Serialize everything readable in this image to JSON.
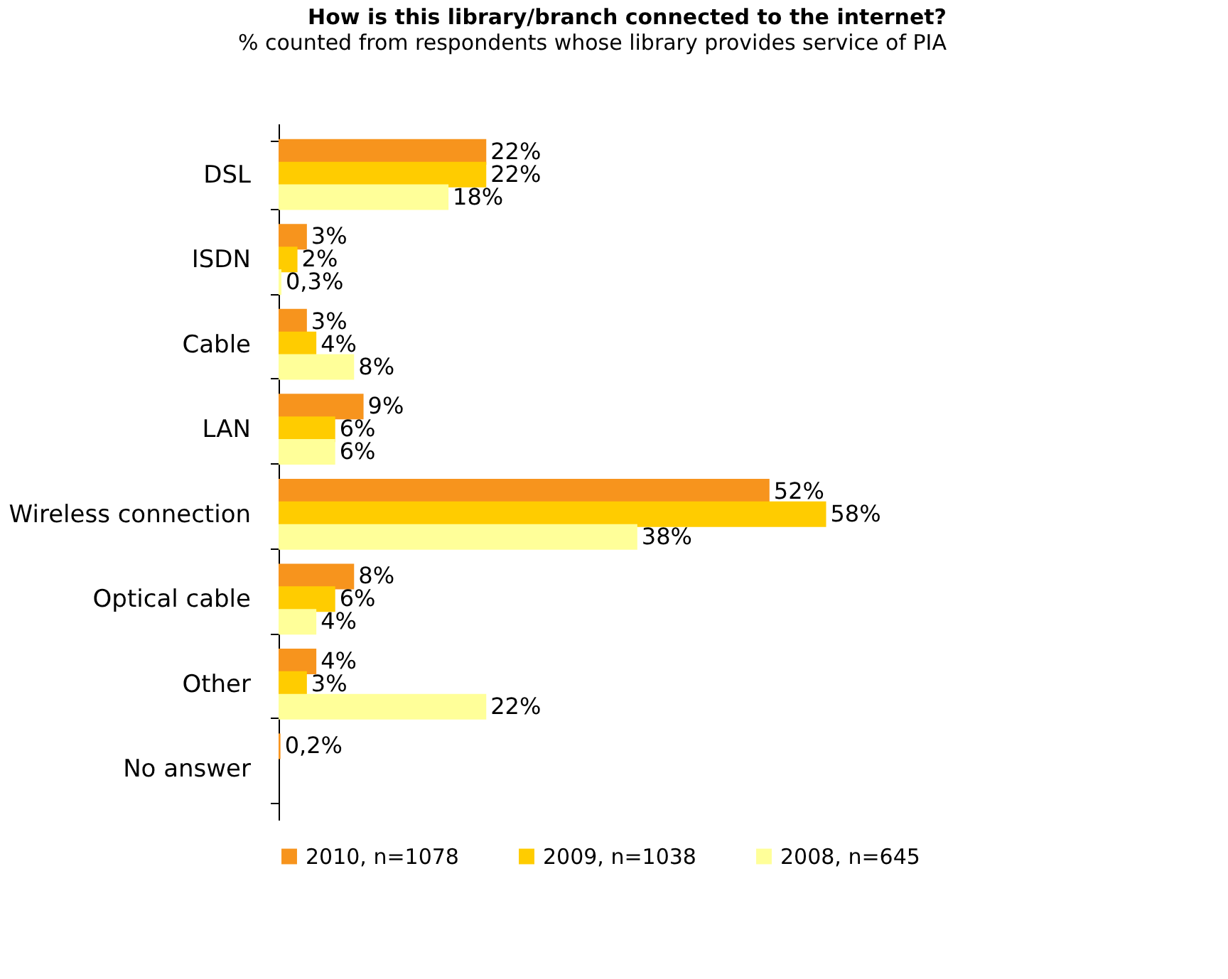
{
  "chart_data": {
    "type": "bar",
    "orientation": "horizontal",
    "title": "How is this library/branch connected to the internet?",
    "subtitle": "% counted from respondents whose library provides service of PIA",
    "categories": [
      "DSL",
      "ISDN",
      "Cable",
      "LAN",
      "Wireless connection",
      "Optical cable",
      "Other",
      "No answer"
    ],
    "series": [
      {
        "name": "2010, n=1078",
        "color": "#f7941d",
        "values": [
          22,
          3,
          3,
          9,
          52,
          8,
          4,
          0.2
        ],
        "value_labels": [
          "22%",
          "3%",
          "3%",
          "9%",
          "52%",
          "8%",
          "4%",
          "0,2%"
        ]
      },
      {
        "name": "2009, n=1038",
        "color": "#ffcc00",
        "values": [
          22,
          2,
          4,
          6,
          58,
          6,
          3,
          null
        ],
        "value_labels": [
          "22%",
          "2%",
          "4%",
          "6%",
          "58%",
          "6%",
          "3%",
          null
        ]
      },
      {
        "name": "2008, n=645",
        "color": "#ffff99",
        "values": [
          18,
          0.3,
          8,
          6,
          38,
          4,
          22,
          null
        ],
        "value_labels": [
          "18%",
          "0,3%",
          "8%",
          "6%",
          "38%",
          "4%",
          "22%",
          null
        ]
      }
    ],
    "legend": "bottom",
    "grid": false
  }
}
